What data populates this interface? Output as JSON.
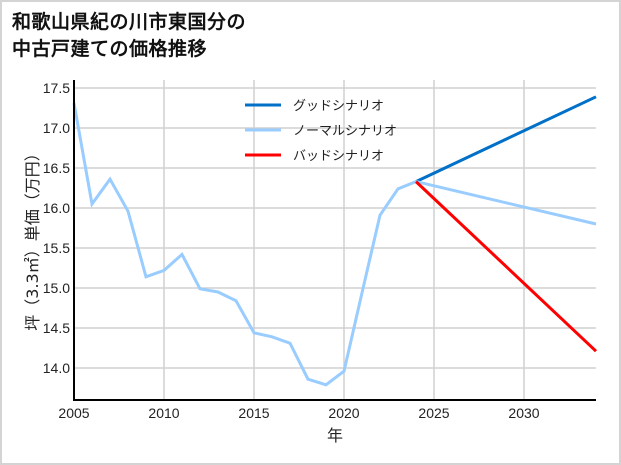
{
  "title_lines": [
    "和歌山県紀の川市東国分の",
    "中古戸建ての価格推移"
  ],
  "chart_data": {
    "type": "line",
    "title": "和歌山県紀の川市東国分の中古戸建ての価格推移",
    "xlabel": "年",
    "ylabel": "坪（3.3㎡）単価（万円）",
    "xlim": [
      2005,
      2034
    ],
    "ylim": [
      13.6,
      17.55
    ],
    "xticks": [
      2005,
      2010,
      2015,
      2020,
      2025,
      2030
    ],
    "yticks": [
      14.0,
      14.5,
      15.0,
      15.5,
      16.0,
      16.5,
      17.0,
      17.5
    ],
    "grid": true,
    "legend_position": "upper center",
    "series": [
      {
        "name": "グッドシナリオ",
        "color": "#0070c8",
        "x": [
          2024,
          2034
        ],
        "values": [
          16.33,
          17.39
        ]
      },
      {
        "name": "ノーマルシナリオ",
        "color": "#99ccff",
        "x": [
          2005,
          2006,
          2007,
          2008,
          2009,
          2010,
          2011,
          2012,
          2013,
          2014,
          2015,
          2016,
          2017,
          2018,
          2019,
          2020,
          2021,
          2022,
          2023,
          2024,
          2034
        ],
        "values": [
          17.31,
          16.05,
          16.36,
          15.96,
          15.14,
          15.22,
          15.42,
          14.99,
          14.95,
          14.84,
          14.44,
          14.39,
          14.31,
          13.86,
          13.79,
          13.96,
          14.94,
          15.91,
          16.24,
          16.33,
          15.8
        ]
      },
      {
        "name": "バッドシナリオ",
        "color": "#ff0000",
        "x": [
          2024,
          2034
        ],
        "values": [
          16.33,
          14.21
        ]
      }
    ]
  }
}
